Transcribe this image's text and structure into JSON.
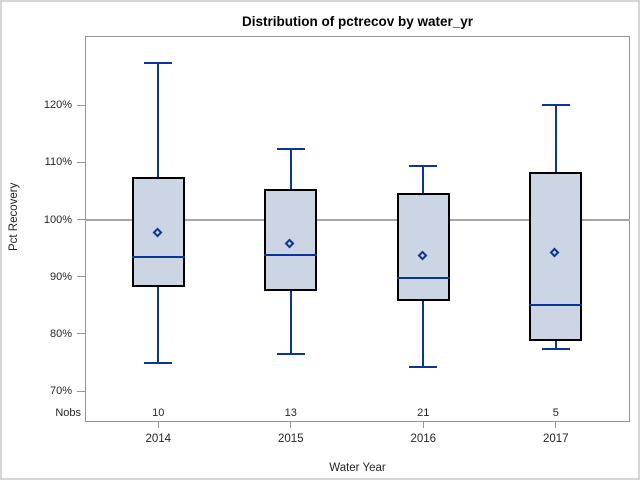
{
  "figure_title": "Distribution of pctrecov by water_yr",
  "colors": {
    "box_fill": "#ccd5e4",
    "box_border": "#000000",
    "whisker_blue": "#0c3598",
    "reference_line": "#a6a6a6",
    "frame_gray": "#8f969b",
    "text": "#262626",
    "outer_border": "#d6d6d6"
  },
  "chart_data": {
    "type": "box",
    "title": "Distribution of pctrecov by water_yr",
    "xlabel": "Water Year",
    "ylabel": "Pct Recovery",
    "categories": [
      "2014",
      "2015",
      "2016",
      "2017"
    ],
    "nobs_label": "Nobs",
    "y_range": [
      64.6,
      132.1
    ],
    "y_ticks": [
      {
        "value": 120,
        "label": "120%"
      },
      {
        "value": 110,
        "label": "110%"
      },
      {
        "value": 100,
        "label": "100%"
      },
      {
        "value": 90,
        "label": "90%"
      },
      {
        "value": 80,
        "label": "80%"
      },
      {
        "value": 70,
        "label": "70%"
      }
    ],
    "reference_line_value": 100,
    "grid": false,
    "legend": "none",
    "series": [
      {
        "category": "2014",
        "nobs": "10",
        "min": 74.9,
        "q1": 88.2,
        "median": 93.5,
        "q3": 107.4,
        "max": 127.4,
        "mean": 97.6
      },
      {
        "category": "2015",
        "nobs": "13",
        "min": 76.5,
        "q1": 87.5,
        "median": 93.8,
        "q3": 105.3,
        "max": 112.3,
        "mean": 95.7
      },
      {
        "category": "2016",
        "nobs": "21",
        "min": 74.2,
        "q1": 85.8,
        "median": 89.8,
        "q3": 104.7,
        "max": 109.4,
        "mean": 93.5
      },
      {
        "category": "2017",
        "nobs": "5",
        "min": 77.4,
        "q1": 78.8,
        "median": 85.1,
        "q3": 108.3,
        "max": 120.0,
        "mean": 94.0
      }
    ]
  }
}
